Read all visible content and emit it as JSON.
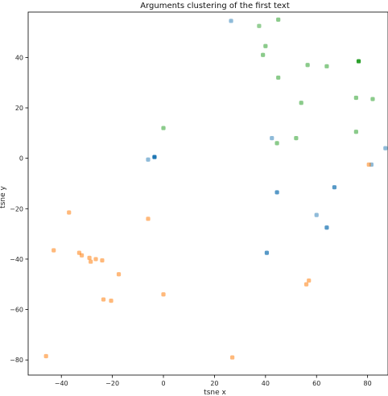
{
  "chart_data": {
    "type": "scatter",
    "title": "Arguments clustering of the first text",
    "xlabel": "tsne x",
    "ylabel": "tsne y",
    "xlim": [
      -53,
      88
    ],
    "ylim": [
      -86,
      58
    ],
    "xticks": [
      -40,
      -20,
      0,
      20,
      40,
      60,
      80
    ],
    "xtick_labels": [
      "−40",
      "−20",
      "0",
      "20",
      "40",
      "60",
      "80"
    ],
    "yticks": [
      -80,
      -60,
      -40,
      -20,
      0,
      20,
      40
    ],
    "ytick_labels": [
      "−80",
      "−60",
      "−40",
      "−20",
      "0",
      "20",
      "40"
    ],
    "grid": false,
    "series": [
      {
        "color": "#1f77b4",
        "points": [
          {
            "x": -6,
            "y": -0.5,
            "alpha": 0.5
          },
          {
            "x": -3.5,
            "y": 0.5,
            "alpha": 1.0
          },
          {
            "x": 26.5,
            "y": 54.5,
            "alpha": 0.5
          },
          {
            "x": 42.5,
            "y": 8,
            "alpha": 0.5
          },
          {
            "x": 44.5,
            "y": -13.5,
            "alpha": 0.75
          },
          {
            "x": 40.5,
            "y": -37.5,
            "alpha": 0.75
          },
          {
            "x": 60,
            "y": -22.5,
            "alpha": 0.5
          },
          {
            "x": 64,
            "y": -27.5,
            "alpha": 0.75
          },
          {
            "x": 67,
            "y": -11.5,
            "alpha": 0.75
          },
          {
            "x": 81.5,
            "y": -2.5,
            "alpha": 0.5
          },
          {
            "x": 87,
            "y": 4,
            "alpha": 0.5
          }
        ]
      },
      {
        "color": "#ff7f0e",
        "points": [
          {
            "x": -46,
            "y": -78.5
          },
          {
            "x": -43,
            "y": -36.5
          },
          {
            "x": -37,
            "y": -21.5
          },
          {
            "x": -33,
            "y": -37.5
          },
          {
            "x": -32,
            "y": -38.5
          },
          {
            "x": -29,
            "y": -39.5
          },
          {
            "x": -28.5,
            "y": -41
          },
          {
            "x": -26.5,
            "y": -40
          },
          {
            "x": -24,
            "y": -40.5
          },
          {
            "x": -23.5,
            "y": -56
          },
          {
            "x": -20.5,
            "y": -56.5
          },
          {
            "x": -17.5,
            "y": -46
          },
          {
            "x": -6,
            "y": -24
          },
          {
            "x": 0,
            "y": -54
          },
          {
            "x": 27,
            "y": -79
          },
          {
            "x": 56,
            "y": -50
          },
          {
            "x": 57,
            "y": -48.5
          },
          {
            "x": 80.5,
            "y": -2.5
          }
        ]
      },
      {
        "color": "#2ca02c",
        "points": [
          {
            "x": 0,
            "y": 12
          },
          {
            "x": 37.5,
            "y": 52.5,
            "alpha": 0.5
          },
          {
            "x": 39,
            "y": 41
          },
          {
            "x": 40,
            "y": 44.5
          },
          {
            "x": 45,
            "y": 55
          },
          {
            "x": 45,
            "y": 32
          },
          {
            "x": 44.5,
            "y": 6
          },
          {
            "x": 52,
            "y": 8
          },
          {
            "x": 54,
            "y": 22
          },
          {
            "x": 56.5,
            "y": 37
          },
          {
            "x": 64,
            "y": 36.5
          },
          {
            "x": 75.5,
            "y": 24
          },
          {
            "x": 75.5,
            "y": 10.5
          },
          {
            "x": 76.5,
            "y": 38.5,
            "alpha": 1.0
          },
          {
            "x": 82,
            "y": 23.5
          }
        ]
      }
    ]
  }
}
